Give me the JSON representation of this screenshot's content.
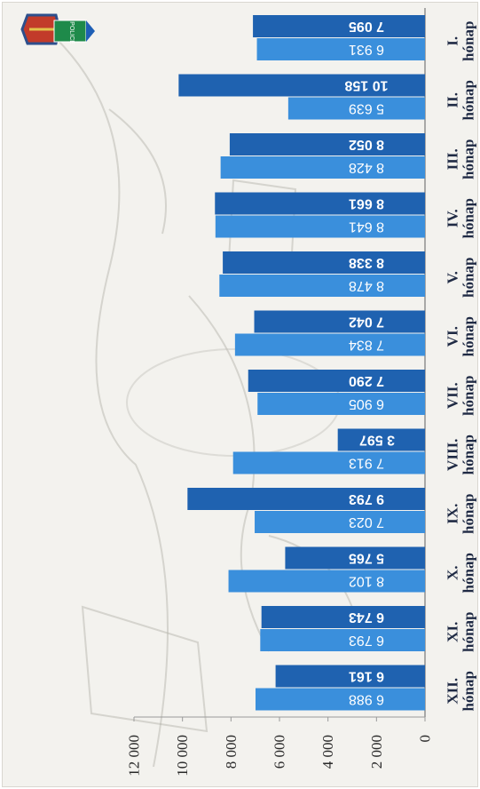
{
  "chart_data": {
    "type": "bar",
    "orientation": "rotated",
    "categories": [
      [
        "I.",
        "hónap"
      ],
      [
        "II.",
        "hónap"
      ],
      [
        "III.",
        "hónap"
      ],
      [
        "IV.",
        "hónap"
      ],
      [
        "V.",
        "hónap"
      ],
      [
        "VI.",
        "hónap"
      ],
      [
        "VII.",
        "hónap"
      ],
      [
        "VIII.",
        "hónap"
      ],
      [
        "IX.",
        "hónap"
      ],
      [
        "X.",
        "hónap"
      ],
      [
        "XI.",
        "hónap"
      ],
      [
        "XII.",
        "hónap"
      ]
    ],
    "series": [
      {
        "color": "#1f62b0",
        "values": [
          7095,
          10158,
          8052,
          8661,
          8338,
          7042,
          7290,
          3597,
          9793,
          5765,
          6743,
          6161
        ],
        "labels": [
          "7 095",
          "10 158",
          "8 052",
          "8 661",
          "8 338",
          "7 042",
          "7 290",
          "3 597",
          "9 793",
          "5 765",
          "6 743",
          "6 161"
        ]
      },
      {
        "color": "#3a8fdc",
        "values": [
          6931,
          5639,
          8428,
          8641,
          8478,
          7834,
          6905,
          7913,
          7023,
          8102,
          6793,
          6988
        ],
        "labels": [
          "6 931",
          "5 639",
          "8 428",
          "8 641",
          "8 478",
          "7 834",
          "6 905",
          "7 913",
          "7 023",
          "8 102",
          "6 793",
          "6 988"
        ]
      }
    ],
    "ylim": [
      0,
      12000
    ],
    "yticks": [
      0,
      2000,
      4000,
      6000,
      8000,
      10000,
      12000
    ],
    "ytick_labels": [
      "0",
      "2 000",
      "4 000",
      "6 000",
      "8 000",
      "10 000",
      "12 000"
    ],
    "grid": false,
    "legend": "none"
  },
  "logo": {
    "police_text": "POLICE"
  }
}
